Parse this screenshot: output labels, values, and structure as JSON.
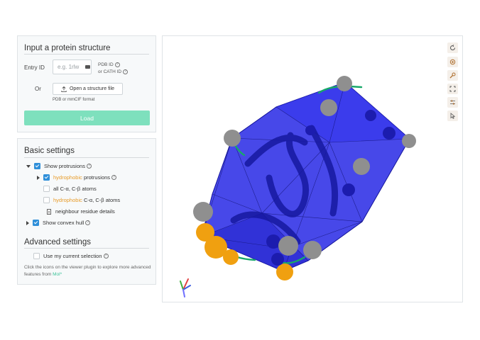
{
  "input_panel": {
    "title": "Input a protein structure",
    "entry_label": "Entry ID",
    "entry_placeholder": "e.g. 1rlw",
    "pdb_id_label": "PDB ID",
    "cath_id_label": "or CATH ID",
    "or_label": "Or",
    "open_file_label": "Open a structure file",
    "format_hint": "PDB or mmCIF format",
    "load_label": "Load"
  },
  "basic_settings": {
    "title": "Basic settings",
    "show_protrusions": {
      "label": "Show protrusions",
      "checked": true
    },
    "hydrophobic_protrusions": {
      "highlight": "hydrophobic",
      "rest": " protrusions",
      "checked": true
    },
    "all_atoms": {
      "label": "all C-α, C-β atoms",
      "checked": false
    },
    "hydrophobic_atoms": {
      "highlight": "hydrophobic",
      "rest": " C-α, C-β atoms",
      "checked": false
    },
    "neighbour_details": "neighbour residue details",
    "show_convex_hull": {
      "label": "Show convex hull",
      "checked": true
    }
  },
  "advanced_settings": {
    "title": "Advanced settings",
    "use_selection": {
      "label": "Use my current selection",
      "checked": false
    },
    "footnote_text": "Click the icons on the viewer plugin to explore more advanced features from ",
    "footnote_link": "Mol*"
  },
  "viewer": {
    "toolbar": [
      "reset-camera-icon",
      "screenshot-icon",
      "settings-icon",
      "expand-icon",
      "controls-icon",
      "selection-mode-icon"
    ],
    "colors": {
      "hull": "#2d2fe6",
      "hull_dark": "#1a1ab0",
      "protrusion_grey": "#8f8f8f",
      "protrusion_orange": "#f0a010",
      "ribbon": "#18a86a",
      "axis_red": "#e04040",
      "axis_green": "#40b040",
      "axis_blue": "#4060e0"
    }
  }
}
